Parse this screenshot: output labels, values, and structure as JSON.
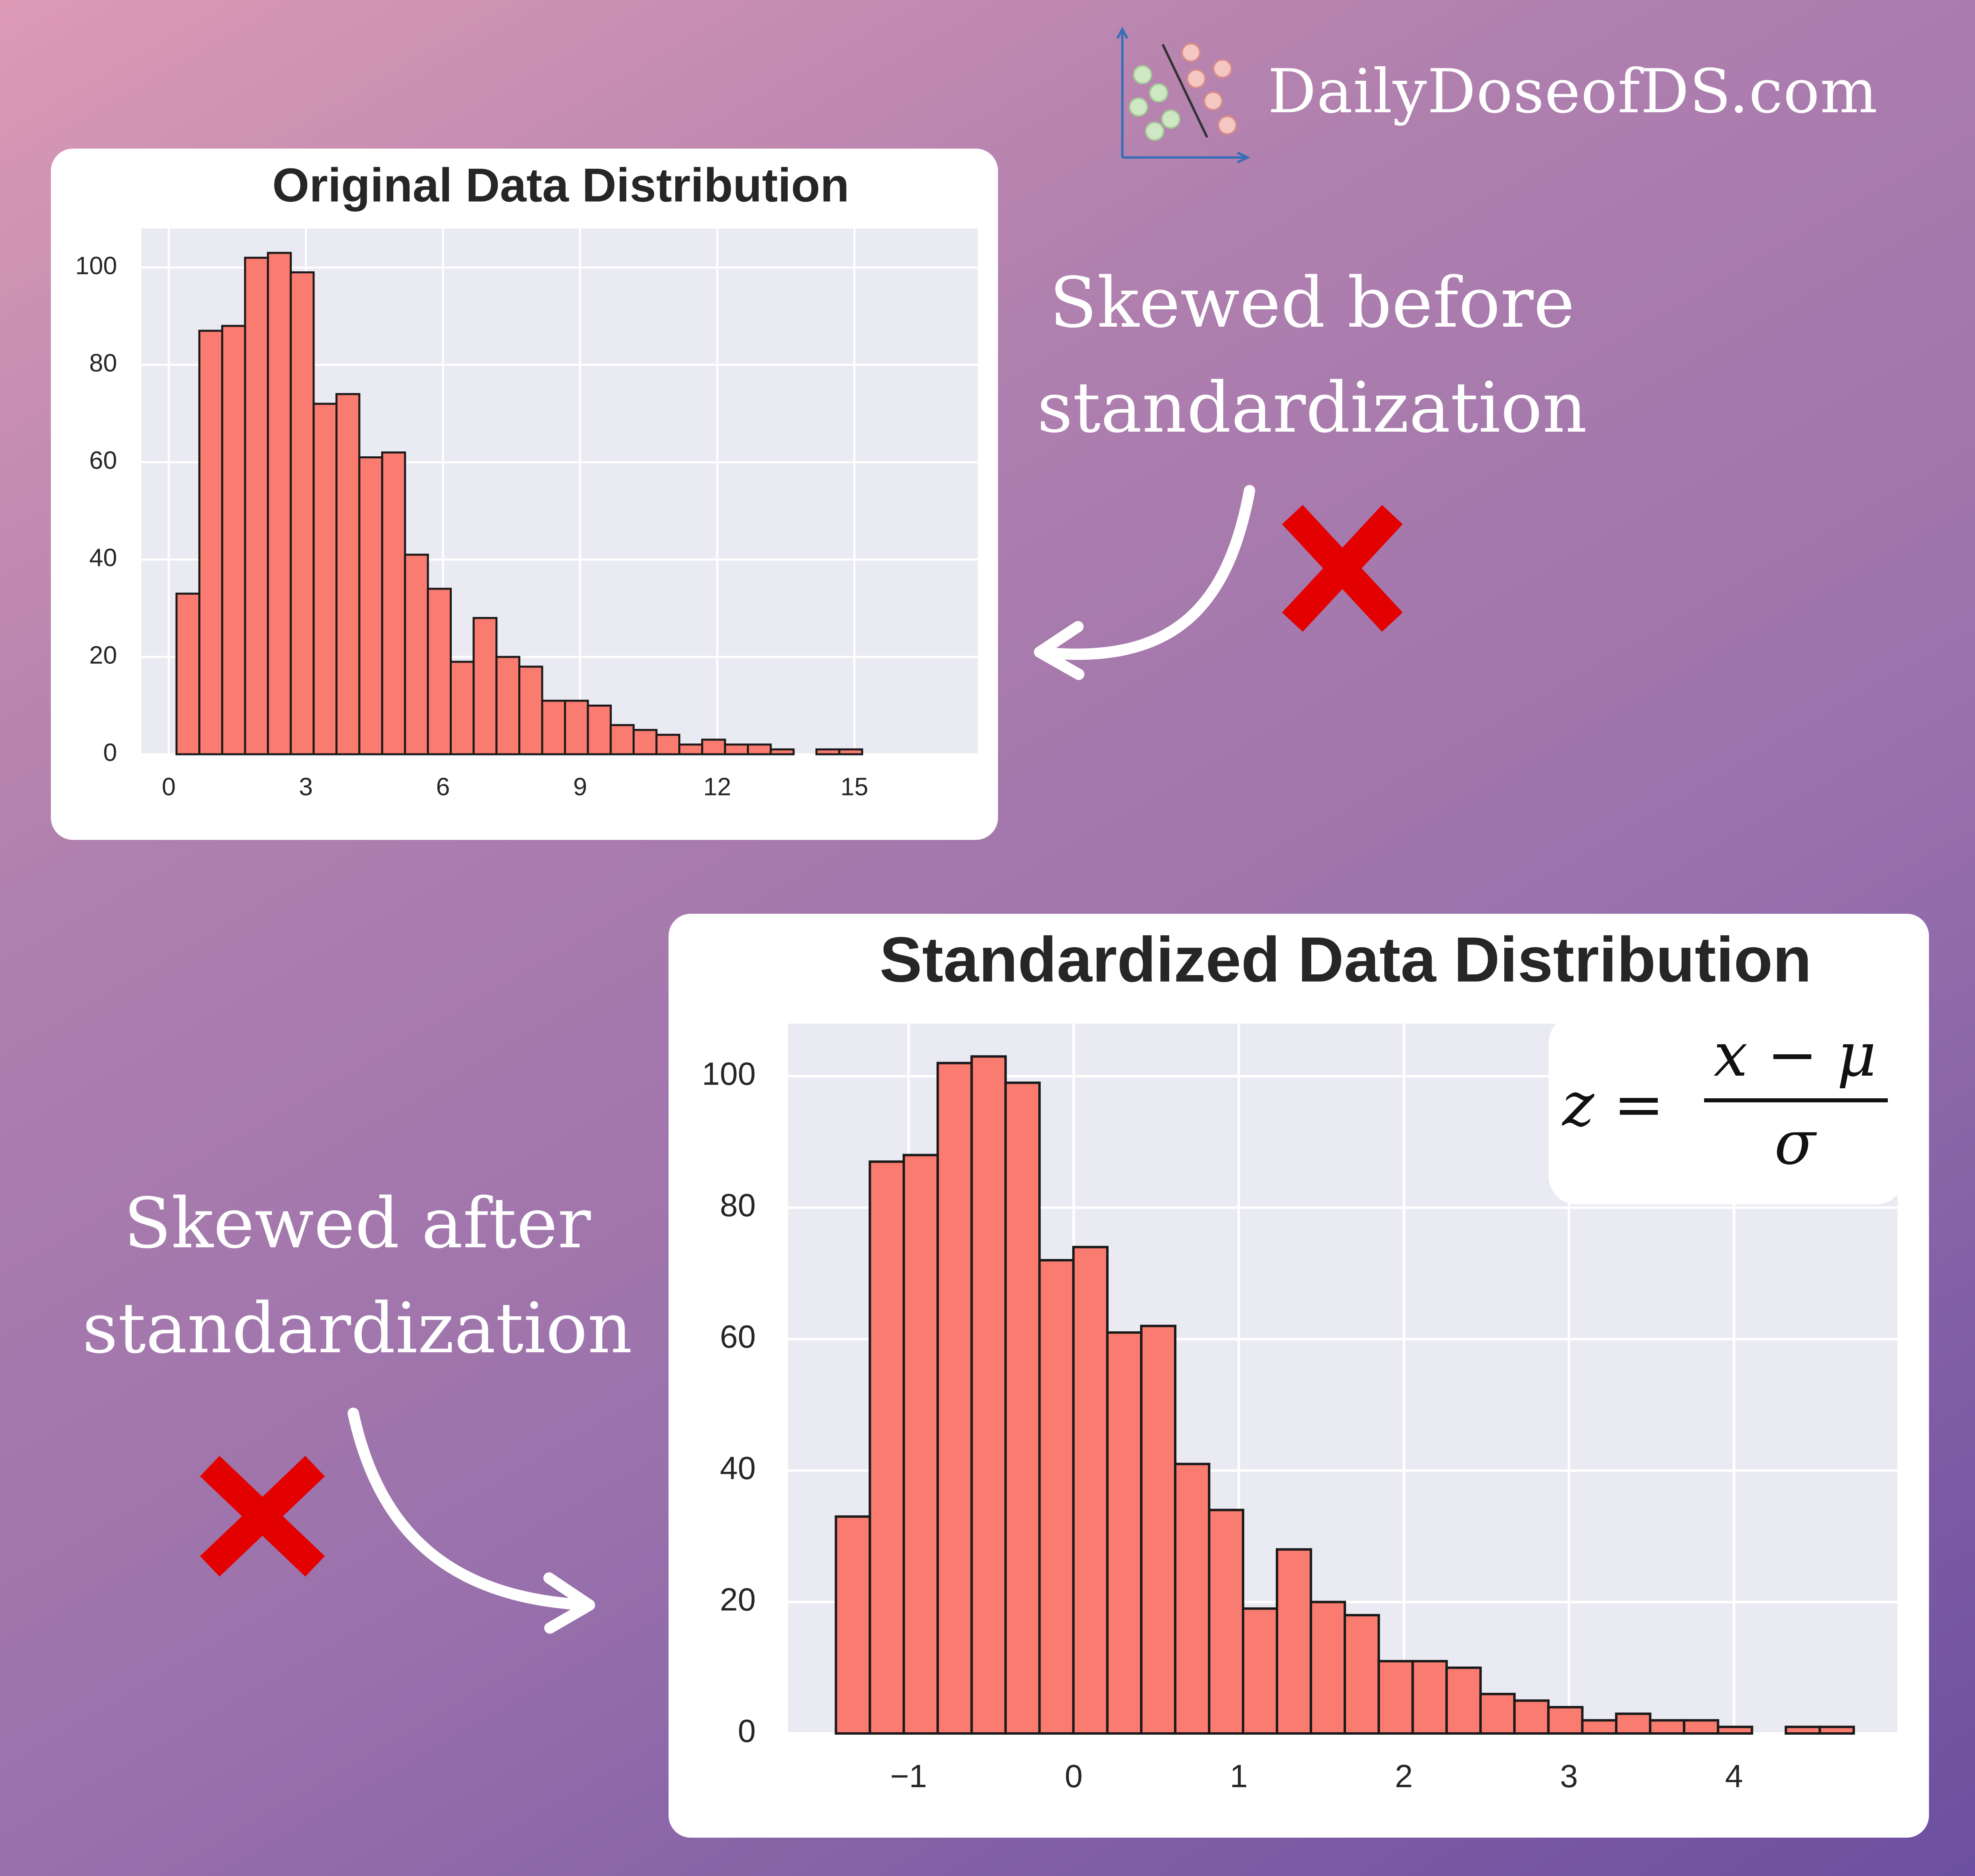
{
  "brand": {
    "text": "DailyDoseofDS.com",
    "icon": "scatter-classifier-logo"
  },
  "captions": {
    "before_line1": "Skewed before",
    "before_line2": "standardization",
    "after_line1": "Skewed after",
    "after_line2": "standardization"
  },
  "formula": {
    "lhs": "z =",
    "numerator": "x − μ",
    "denominator": "σ"
  },
  "colors": {
    "bar_fill": "#fa7b70",
    "bar_edge": "#1a1a1a",
    "plot_bg": "#eaeaf2",
    "grid": "#ffffff",
    "cross": "#e30000",
    "text": "#262626"
  },
  "chart_data": [
    {
      "type": "bar",
      "title": "Original Data Distribution",
      "bins_start": 0.17,
      "bin_width": 0.5,
      "values": [
        33,
        87,
        88,
        102,
        103,
        99,
        72,
        74,
        61,
        62,
        41,
        34,
        19,
        28,
        20,
        18,
        11,
        11,
        10,
        6,
        5,
        4,
        2,
        3,
        2,
        2,
        1,
        0,
        1,
        1
      ],
      "xticks": [
        0,
        3,
        6,
        9,
        12,
        15
      ],
      "xlim": [
        -0.6,
        17.7
      ],
      "yticks": [
        0,
        20,
        40,
        60,
        80,
        100
      ],
      "ylim": [
        0,
        108
      ],
      "grid": true
    },
    {
      "type": "bar",
      "title": "Standardized Data Distribution",
      "bins_start": -1.44,
      "bin_width": 0.2055,
      "values": [
        33,
        87,
        88,
        102,
        103,
        99,
        72,
        74,
        61,
        62,
        41,
        34,
        19,
        28,
        20,
        18,
        11,
        11,
        10,
        6,
        5,
        4,
        2,
        3,
        2,
        2,
        1,
        0,
        1,
        1
      ],
      "xticks": [
        -1,
        0,
        1,
        2,
        3,
        4
      ],
      "xtick_labels": [
        "−1",
        "0",
        "1",
        "2",
        "3",
        "4"
      ],
      "xlim": [
        -1.73,
        4.99
      ],
      "yticks": [
        0,
        20,
        40,
        60,
        80,
        100
      ],
      "ylim": [
        0,
        108
      ],
      "grid": true
    }
  ]
}
